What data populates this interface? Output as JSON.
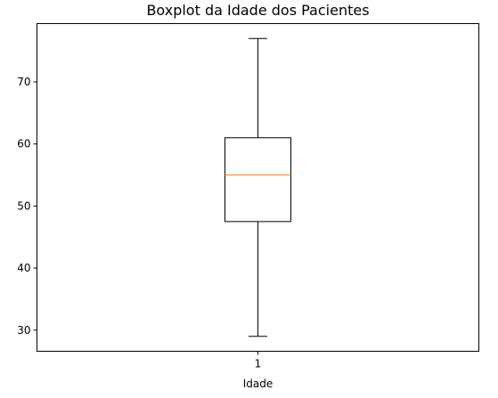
{
  "chart_data": {
    "type": "boxplot",
    "title": "Boxplot da Idade dos Pacientes",
    "xlabel": "Idade",
    "ylabel": "",
    "categories": [
      "1"
    ],
    "boxes": [
      {
        "category": "1",
        "whisker_low": 29,
        "q1": 47.5,
        "median": 55,
        "q3": 61,
        "whisker_high": 77
      }
    ],
    "yticks": [
      30,
      40,
      50,
      60,
      70
    ],
    "ylim": [
      26.6,
      79.4
    ],
    "xlim": [
      0.5,
      1.5
    ],
    "grid": false,
    "colors": {
      "box": "#000000",
      "median": "#ff7f0e",
      "frame": "#000000"
    }
  }
}
